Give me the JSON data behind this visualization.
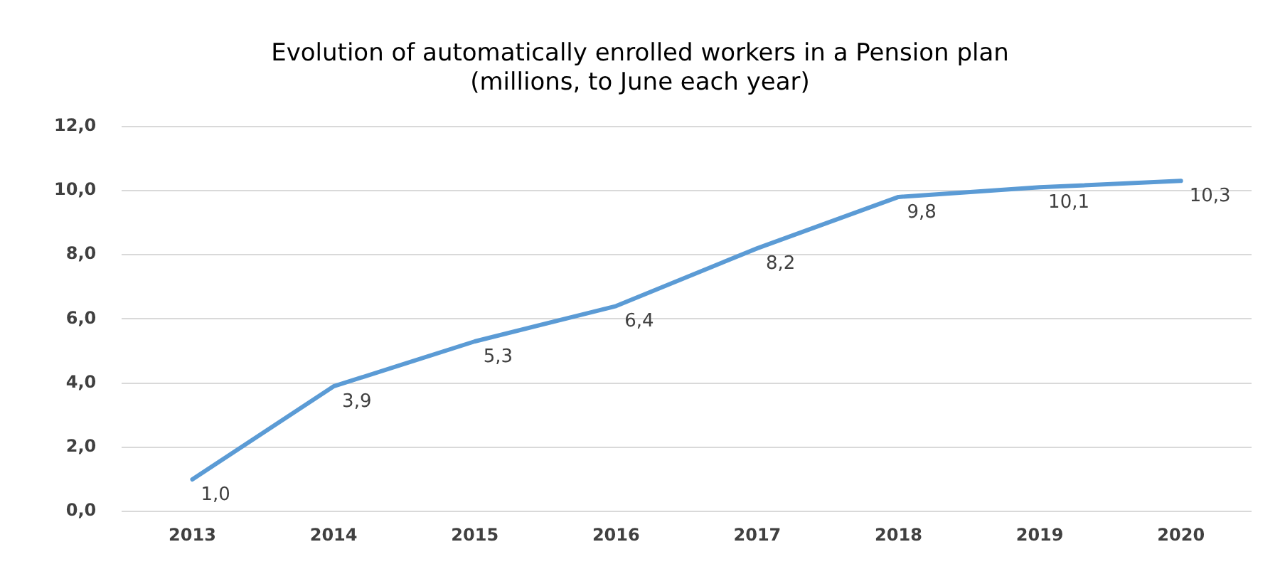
{
  "chart_data": {
    "type": "line",
    "title": "Evolution of automatically enrolled workers in a Pension plan (millions, to June each year)",
    "categories": [
      "2013",
      "2014",
      "2015",
      "2016",
      "2017",
      "2018",
      "2019",
      "2020"
    ],
    "series": [
      {
        "color": "#5b9bd5",
        "values": [
          1.0,
          3.9,
          5.3,
          6.4,
          8.2,
          9.8,
          10.1,
          10.3
        ],
        "value_labels": [
          "1,0",
          "3,9",
          "5,3",
          "6,4",
          "8,2",
          "9,8",
          "10,1",
          "10,3"
        ]
      }
    ],
    "ylim": [
      0,
      12
    ],
    "yticks": [
      {
        "value": 0,
        "label": "0,0"
      },
      {
        "value": 2,
        "label": "2,0"
      },
      {
        "value": 4,
        "label": "4,0"
      },
      {
        "value": 6,
        "label": "6,0"
      },
      {
        "value": 8,
        "label": "8,0"
      },
      {
        "value": 10,
        "label": "10,0"
      },
      {
        "value": 12,
        "label": "12,0"
      }
    ],
    "grid": "y",
    "legend": false,
    "marker": "none",
    "line_style": "solid"
  }
}
